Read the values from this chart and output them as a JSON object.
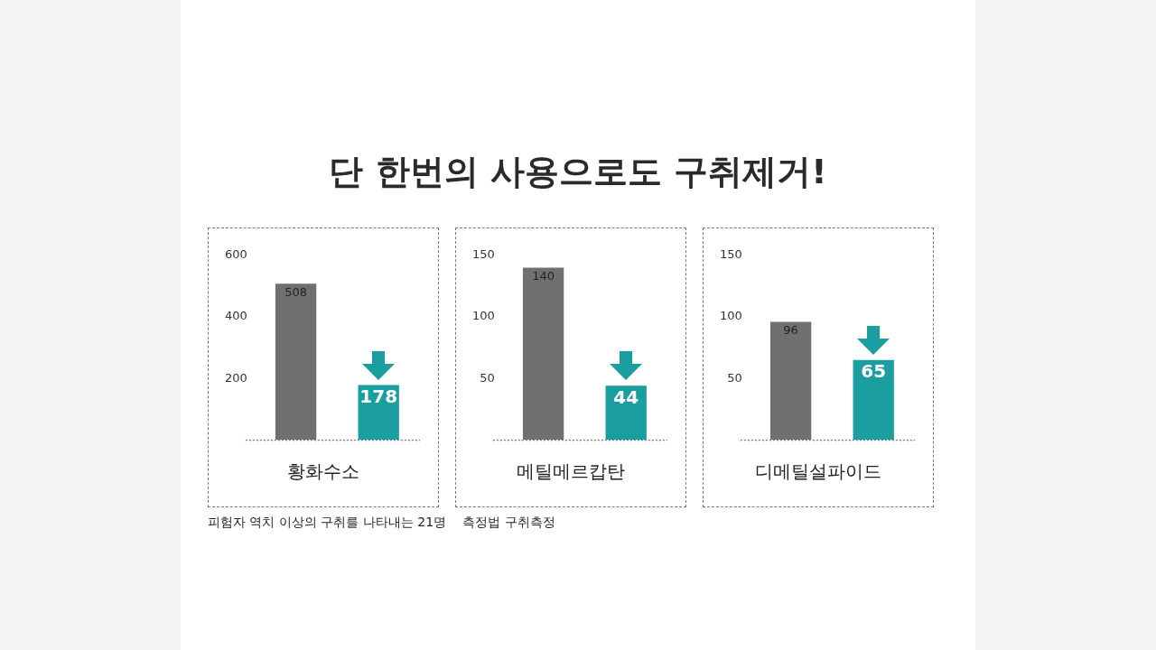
{
  "chart_data": [
    {
      "type": "bar",
      "title": "단 한번의 사용으로도 구취제거!",
      "xlabel": "황화수소",
      "categories": [
        null,
        null
      ],
      "values": [
        508,
        178
      ],
      "colors": [
        "#707070",
        "#1a9ea0"
      ],
      "ylim": [
        0,
        600
      ],
      "yticks": [
        200,
        400,
        600
      ],
      "data_labels": true,
      "grid": false,
      "legend": false,
      "annotations": [
        "피험자 역치 이상의 구취를 나타내는 21명",
        "측정법 구취측정"
      ]
    },
    {
      "type": "bar",
      "xlabel": "메틸메르캅탄",
      "categories": [
        null,
        null
      ],
      "values": [
        140,
        44
      ],
      "colors": [
        "#707070",
        "#1a9ea0"
      ],
      "ylim": [
        0,
        150
      ],
      "yticks": [
        50,
        100,
        150
      ],
      "data_labels": true,
      "grid": false,
      "legend": false
    },
    {
      "type": "bar",
      "xlabel": "디메틸설파이드",
      "categories": [
        null,
        null
      ],
      "values": [
        96,
        65
      ],
      "colors": [
        "#707070",
        "#1a9ea0"
      ],
      "ylim": [
        0,
        150
      ],
      "yticks": [
        50,
        100,
        150
      ],
      "data_labels": true,
      "grid": false,
      "legend": false
    }
  ]
}
